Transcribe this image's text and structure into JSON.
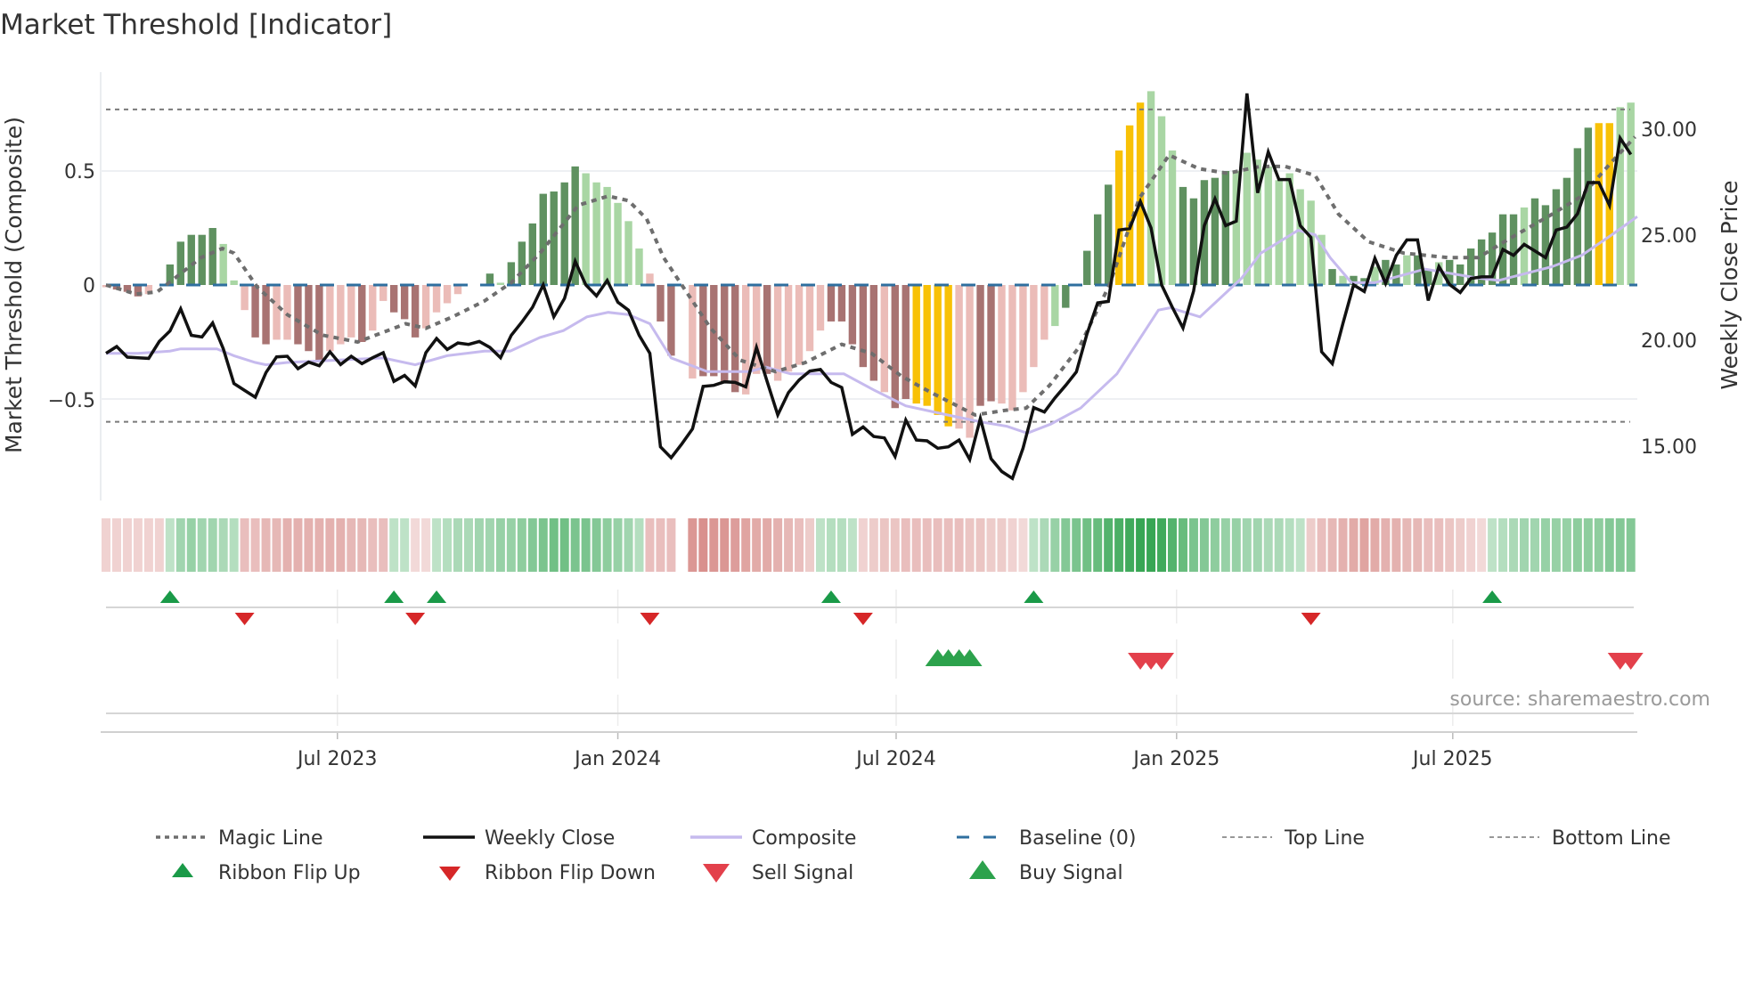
{
  "title": "Market Threshold [Indicator]",
  "source": "source: sharemaestro.com",
  "colors": {
    "bar_dark_green": "#5f9160",
    "bar_light_green": "#a9d6a4",
    "bar_dark_red": "#a87372",
    "bar_light_red": "#ebbcb8",
    "bar_yellow": "#f8c106",
    "magic_line": "#6e6e6e",
    "weekly_close": "#111111",
    "composite": "#c6baee",
    "baseline": "#2f6f9f",
    "threshold_lines": "#7a7a7a",
    "ribbon_green": "#35a552",
    "ribbon_red": "#cf7470",
    "flip_up": "#1a9a48",
    "flip_down": "#d62728",
    "sell": "#e3404b",
    "buy": "#2ca24c"
  },
  "chart_data": {
    "type": "bar",
    "title": "Market Threshold [Indicator]",
    "ylabel": "Market Threshold (Composite)",
    "y2label": "Weekly Close Price",
    "xlabel": "",
    "x_unit": "week index (weekly bars)",
    "ylim": [
      -0.9,
      0.93
    ],
    "y2lim": [
      12.6,
      32.9
    ],
    "yticks": [
      {
        "value": 0.5,
        "label": "0.5"
      },
      {
        "value": 0,
        "label": "0"
      },
      {
        "value": -0.5,
        "label": "−0.5"
      }
    ],
    "y2ticks": [
      {
        "value": 30,
        "label": "30.00"
      },
      {
        "value": 25,
        "label": "25.00"
      },
      {
        "value": 20,
        "label": "20.00"
      },
      {
        "value": 15,
        "label": "15.00"
      }
    ],
    "x_ticks": [
      {
        "x": 21.7,
        "label": "Jul 2023"
      },
      {
        "x": 48.0,
        "label": "Jan 2024"
      },
      {
        "x": 74.1,
        "label": "Jul 2024"
      },
      {
        "x": 100.4,
        "label": "Jan 2025"
      },
      {
        "x": 126.3,
        "label": "Jul 2025"
      }
    ],
    "top_line": 0.77,
    "bottom_line": -0.6,
    "baseline": 0,
    "histogram": [
      -0.01,
      -0.02,
      -0.03,
      -0.05,
      -0.04,
      0,
      0.09,
      0.19,
      0.22,
      0.22,
      0.25,
      0.18,
      0.02,
      -0.11,
      -0.23,
      -0.26,
      -0.24,
      -0.24,
      -0.26,
      -0.29,
      -0.33,
      -0.29,
      -0.26,
      -0.23,
      -0.25,
      -0.2,
      -0.07,
      -0.12,
      -0.15,
      -0.23,
      -0.19,
      -0.12,
      -0.08,
      -0.04,
      0,
      0,
      0.05,
      0.01,
      0.1,
      0.19,
      0.27,
      0.4,
      0.41,
      0.45,
      0.52,
      0.49,
      0.45,
      0.43,
      0.36,
      0.28,
      0.16,
      0.05,
      -0.16,
      -0.31,
      null,
      -0.41,
      -0.4,
      -0.4,
      -0.43,
      -0.47,
      -0.48,
      -0.39,
      -0.39,
      -0.42,
      -0.38,
      -0.35,
      -0.29,
      -0.2,
      -0.16,
      -0.16,
      -0.26,
      -0.36,
      -0.42,
      -0.47,
      -0.54,
      -0.5,
      -0.52,
      -0.53,
      -0.57,
      -0.62,
      -0.63,
      -0.67,
      -0.53,
      -0.51,
      -0.52,
      -0.55,
      -0.47,
      -0.36,
      -0.24,
      -0.18,
      -0.1,
      0,
      0.15,
      0.31,
      0.44,
      0.59,
      0.7,
      0.8,
      0.85,
      0.74,
      0.59,
      0.43,
      0.38,
      0.46,
      0.47,
      0.5,
      0.5,
      0.58,
      0.55,
      0.52,
      0.46,
      0.49,
      0.42,
      0.37,
      0.22,
      0.07,
      0.04,
      0.04,
      0.03,
      0.08,
      0.11,
      0.09,
      0.13,
      0.13,
      0.07,
      0.1,
      0.11,
      0.09,
      0.16,
      0.2,
      0.23,
      0.31,
      0.31,
      0.34,
      0.38,
      0.35,
      0.42,
      0.47,
      0.6,
      0.69,
      0.71,
      0.71,
      0.78,
      0.8
    ],
    "histogram_class": "rRRRrgGGGGGggrRRrrRRRrrrRrrRRRrrrrggGgGGGGGGGggggggrRRRrRRRRrrRrrrrrRRRRRrRRYYYYrrRRrrrrrgGGGGGYYYgggGGGGGgggggggggGgGGgGGgGGgGGGGGGGgGGGGGGYY",
    "weekly_close": [
      19.38,
      19.7,
      19.2,
      19.17,
      19.14,
      19.94,
      20.44,
      21.49,
      20.23,
      20.15,
      20.82,
      19.59,
      17.95,
      17.62,
      17.3,
      18.47,
      19.21,
      19.24,
      18.65,
      18.96,
      18.79,
      19.45,
      18.85,
      19.24,
      18.89,
      19.17,
      19.41,
      18.05,
      18.33,
      17.83,
      19.41,
      20.08,
      19.56,
      19.87,
      19.8,
      19.94,
      19.66,
      19.17,
      20.23,
      20.86,
      21.56,
      22.62,
      21.11,
      21.98,
      23.74,
      22.62,
      22.1,
      22.83,
      21.8,
      21.42,
      20.23,
      19.38,
      14.95,
      14.43,
      15.09,
      15.8,
      17.81,
      17.86,
      18.03,
      18.0,
      17.79,
      19.66,
      18.05,
      16.46,
      17.52,
      18.12,
      18.54,
      18.61,
      18.0,
      17.76,
      15.54,
      15.89,
      15.44,
      15.37,
      14.49,
      16.22,
      15.27,
      15.23,
      14.88,
      14.95,
      15.27,
      14.35,
      16.29,
      14.39,
      13.78,
      13.45,
      14.88,
      16.81,
      16.6,
      17.27,
      17.86,
      18.5,
      20.3,
      21.77,
      21.84,
      25.22,
      25.29,
      26.58,
      25.32,
      22.62,
      21.56,
      20.58,
      22.33,
      25.43,
      26.7,
      25.43,
      25.64,
      31.69,
      26.98,
      28.92,
      27.61,
      27.61,
      25.43,
      24.87,
      19.45,
      18.89,
      20.79,
      22.62,
      22.31,
      23.88,
      22.69,
      24.02,
      24.75,
      24.75,
      21.88,
      23.49,
      22.64,
      22.26,
      22.93,
      23.0,
      23.01,
      24.3,
      24.02,
      24.54,
      24.23,
      23.91,
      25.22,
      25.36,
      25.99,
      27.47,
      27.47,
      26.39,
      29.58,
      28.8
    ],
    "magic_line": [
      [
        0,
        0.0
      ],
      [
        2.8,
        -0.04
      ],
      [
        4.8,
        -0.03
      ],
      [
        7,
        0.05
      ],
      [
        8.9,
        0.12
      ],
      [
        10.9,
        0.16
      ],
      [
        12,
        0.14
      ],
      [
        14.2,
        -0.01
      ],
      [
        17,
        -0.13
      ],
      [
        20.3,
        -0.22
      ],
      [
        23.6,
        -0.25
      ],
      [
        25.3,
        -0.22
      ],
      [
        28.1,
        -0.17
      ],
      [
        30,
        -0.19
      ],
      [
        32.5,
        -0.14
      ],
      [
        35.5,
        -0.07
      ],
      [
        38,
        0.01
      ],
      [
        40.7,
        0.14
      ],
      [
        44.3,
        0.35
      ],
      [
        47.1,
        0.39
      ],
      [
        49,
        0.37
      ],
      [
        50.7,
        0.29
      ],
      [
        52.3,
        0.12
      ],
      [
        54,
        0
      ],
      [
        56.7,
        -0.19
      ],
      [
        59.5,
        -0.33
      ],
      [
        62.8,
        -0.38
      ],
      [
        65.6,
        -0.34
      ],
      [
        69,
        -0.26
      ],
      [
        71.8,
        -0.3
      ],
      [
        74.6,
        -0.4
      ],
      [
        77.3,
        -0.47
      ],
      [
        81.5,
        -0.57
      ],
      [
        84.3,
        -0.55
      ],
      [
        86.3,
        -0.54
      ],
      [
        88.5,
        -0.44
      ],
      [
        91.3,
        -0.27
      ],
      [
        94.1,
        0
      ],
      [
        96.9,
        0.38
      ],
      [
        99.7,
        0.57
      ],
      [
        102.5,
        0.51
      ],
      [
        105.2,
        0.49
      ],
      [
        108.2,
        0.52
      ],
      [
        110.6,
        0.52
      ],
      [
        113.4,
        0.48
      ],
      [
        115.6,
        0.31
      ],
      [
        118.4,
        0.19
      ],
      [
        121.7,
        0.14
      ],
      [
        125.9,
        0.12
      ],
      [
        128.7,
        0.12
      ],
      [
        131.5,
        0.2
      ],
      [
        135.6,
        0.31
      ],
      [
        138.4,
        0.39
      ],
      [
        141.2,
        0.54
      ],
      [
        143.4,
        0.65
      ]
    ],
    "composite": [
      [
        0,
        -0.3
      ],
      [
        3,
        -0.3
      ],
      [
        6,
        -0.29
      ],
      [
        7,
        -0.28
      ],
      [
        10.4,
        -0.28
      ],
      [
        12,
        -0.31
      ],
      [
        14,
        -0.34
      ],
      [
        15,
        -0.35
      ],
      [
        17,
        -0.34
      ],
      [
        21.5,
        -0.33
      ],
      [
        26,
        -0.32
      ],
      [
        29,
        -0.35
      ],
      [
        32,
        -0.31
      ],
      [
        35.5,
        -0.29
      ],
      [
        37.9,
        -0.29
      ],
      [
        40.7,
        -0.23
      ],
      [
        42.9,
        -0.2
      ],
      [
        45.1,
        -0.14
      ],
      [
        47.1,
        -0.12
      ],
      [
        49,
        -0.13
      ],
      [
        51,
        -0.17
      ],
      [
        53,
        -0.32
      ],
      [
        56.4,
        -0.38
      ],
      [
        60.3,
        -0.38
      ],
      [
        61.9,
        -0.36
      ],
      [
        64.2,
        -0.39
      ],
      [
        67.3,
        -0.39
      ],
      [
        69.2,
        -0.39
      ],
      [
        72,
        -0.46
      ],
      [
        75,
        -0.53
      ],
      [
        78.9,
        -0.57
      ],
      [
        82,
        -0.6
      ],
      [
        84.5,
        -0.62
      ],
      [
        86.4,
        -0.65
      ],
      [
        88.6,
        -0.61
      ],
      [
        91.4,
        -0.54
      ],
      [
        94.8,
        -0.39
      ],
      [
        98.7,
        -0.11
      ],
      [
        99.8,
        -0.1
      ],
      [
        102.6,
        -0.14
      ],
      [
        106.5,
        0.03
      ],
      [
        108.3,
        0.14
      ],
      [
        111.8,
        0.24
      ],
      [
        113.4,
        0.22
      ],
      [
        114.8,
        0.12
      ],
      [
        116.8,
        0.01
      ],
      [
        119,
        0.01
      ],
      [
        123.7,
        0.07
      ],
      [
        128.7,
        0.03
      ],
      [
        130.6,
        0.02
      ],
      [
        135.6,
        0.08
      ],
      [
        138.4,
        0.13
      ],
      [
        141.2,
        0.22
      ],
      [
        143.6,
        0.3
      ]
    ],
    "ribbon": [
      -0.15,
      -0.15,
      -0.15,
      -0.15,
      -0.15,
      -0.15,
      0.15,
      0.3,
      0.35,
      0.3,
      0.3,
      0.25,
      0.2,
      -0.3,
      -0.3,
      -0.35,
      -0.35,
      -0.4,
      -0.4,
      -0.4,
      -0.4,
      -0.4,
      -0.4,
      -0.35,
      -0.35,
      -0.3,
      -0.3,
      0.15,
      0.15,
      -0.1,
      -0.1,
      0.15,
      0.2,
      0.25,
      0.25,
      0.3,
      0.3,
      0.35,
      0.35,
      0.4,
      0.45,
      0.5,
      0.55,
      0.55,
      0.5,
      0.5,
      0.45,
      0.4,
      0.35,
      0.3,
      0.2,
      -0.3,
      -0.3,
      -0.3,
      null,
      -0.6,
      -0.65,
      -0.6,
      -0.6,
      -0.55,
      -0.5,
      -0.45,
      -0.45,
      -0.4,
      -0.35,
      -0.3,
      -0.2,
      0.15,
      0.2,
      0.2,
      0.15,
      -0.15,
      -0.2,
      -0.25,
      -0.25,
      -0.3,
      -0.3,
      -0.3,
      -0.3,
      -0.3,
      -0.3,
      -0.25,
      -0.25,
      -0.2,
      -0.2,
      -0.15,
      -0.1,
      0.15,
      0.25,
      0.35,
      0.45,
      0.5,
      0.55,
      0.6,
      0.7,
      0.75,
      0.8,
      0.85,
      0.85,
      0.8,
      0.7,
      0.6,
      0.5,
      0.45,
      0.4,
      0.35,
      0.35,
      0.3,
      0.3,
      0.25,
      0.25,
      0.2,
      0.15,
      -0.2,
      -0.3,
      -0.35,
      -0.4,
      -0.45,
      -0.5,
      -0.45,
      -0.4,
      -0.4,
      -0.35,
      -0.35,
      -0.3,
      -0.3,
      -0.25,
      -0.2,
      -0.15,
      -0.1,
      0.15,
      0.2,
      0.25,
      0.3,
      0.3,
      0.35,
      0.35,
      0.35,
      0.4,
      0.4,
      0.4,
      0.45,
      0.45,
      0.45
    ],
    "ribbon_flip_up": [
      6,
      27,
      31,
      68,
      87,
      130
    ],
    "ribbon_flip_down": [
      13,
      29,
      51,
      71,
      113
    ],
    "buy_signals": [
      78,
      79,
      80,
      81
    ],
    "sell_signals": [
      97,
      98,
      99,
      142,
      143
    ],
    "legend_position": "bottom",
    "legend": [
      {
        "key": "magic",
        "label": "Magic Line"
      },
      {
        "key": "close",
        "label": "Weekly Close"
      },
      {
        "key": "composite",
        "label": "Composite"
      },
      {
        "key": "baseline",
        "label": "Baseline (0)"
      },
      {
        "key": "top",
        "label": "Top Line"
      },
      {
        "key": "bottom",
        "label": "Bottom Line"
      },
      {
        "key": "flipup",
        "label": "Ribbon Flip Up"
      },
      {
        "key": "flipdown",
        "label": "Ribbon Flip Down"
      },
      {
        "key": "sell",
        "label": "Sell Signal"
      },
      {
        "key": "buy",
        "label": "Buy Signal"
      }
    ]
  }
}
